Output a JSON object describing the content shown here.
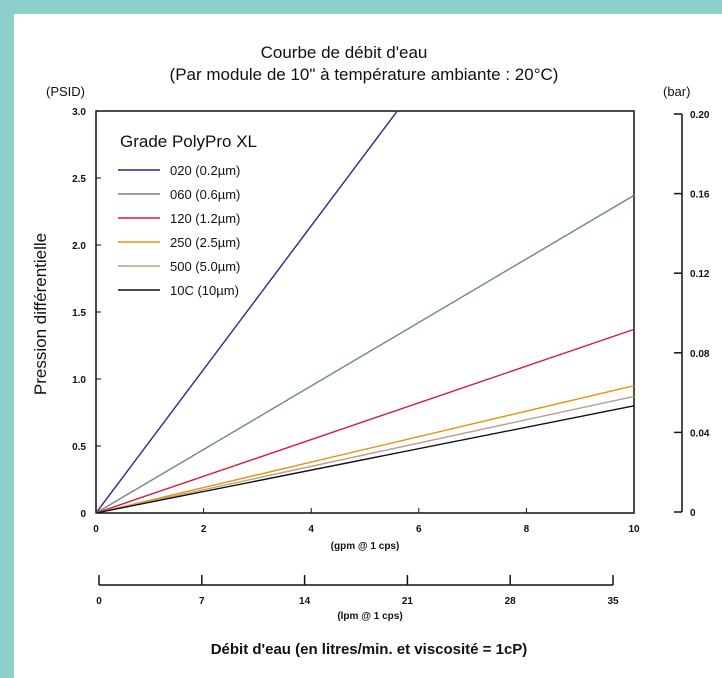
{
  "chart_data": {
    "type": "line",
    "title": "Courbe de débit d'eau",
    "subtitle": "(Par module de 10\" à température ambiante : 20°C)",
    "ylabel": "Pression différentielle",
    "y_left_unit": "(PSID)",
    "y_right_unit": "(bar)",
    "xlabel": "Débit d'eau (en litres/min. et viscosité = 1cP)",
    "x_primary_label": "(gpm @ 1 cps)",
    "x_secondary_label": "(lpm @ 1 cps)",
    "xlim": [
      0,
      10
    ],
    "ylim": [
      0,
      3.0
    ],
    "x_ticks": [
      "0",
      "2",
      "4",
      "6",
      "8",
      "10"
    ],
    "y_ticks": [
      "0",
      "0.5",
      "1.0",
      "1.5",
      "2.0",
      "2.5",
      "3.0"
    ],
    "y_right_ticks": [
      "0",
      "0.04",
      "0.08",
      "0.12",
      "0.16",
      "0.20"
    ],
    "x_secondary_ticks": [
      "0",
      "7",
      "14",
      "21",
      "28",
      "35"
    ],
    "legend_title": "Grade PolyPro XL",
    "legend_position": "top-left",
    "grid": false,
    "series": [
      {
        "name": "020 (0.2µm)",
        "color": "#3d1f8c",
        "x": [
          0,
          5.6
        ],
        "y": [
          0,
          3.0
        ]
      },
      {
        "name": "060 (0.6µm)",
        "color": "#6b8a7f",
        "x": [
          0,
          10
        ],
        "y": [
          0,
          2.37
        ]
      },
      {
        "name": "120 (1.2µm)",
        "color": "#d81b3c",
        "x": [
          0,
          10
        ],
        "y": [
          0,
          1.37
        ]
      },
      {
        "name": "250 (2.5µm)",
        "color": "#e8930c",
        "x": [
          0,
          10
        ],
        "y": [
          0,
          0.95
        ]
      },
      {
        "name": "500 (5.0µm)",
        "color": "#b8a088",
        "x": [
          0,
          10
        ],
        "y": [
          0,
          0.87
        ]
      },
      {
        "name": "10C (10µm)",
        "color": "#111111",
        "x": [
          0,
          10
        ],
        "y": [
          0,
          0.8
        ]
      }
    ]
  }
}
